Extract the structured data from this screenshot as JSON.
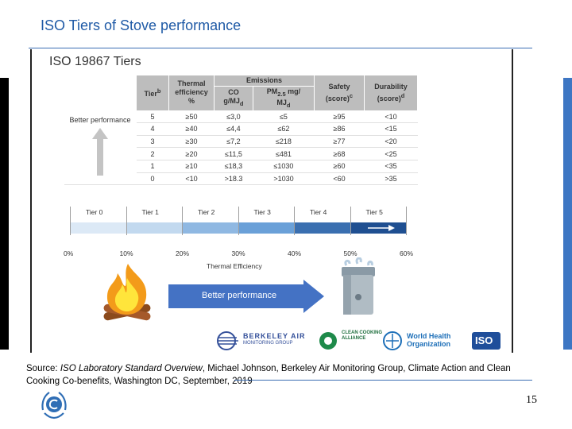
{
  "slide": {
    "title": "ISO Tiers of Stove performance",
    "page_number": "15"
  },
  "figure": {
    "title": "ISO 19867 Tiers",
    "table": {
      "headers": {
        "tier": "Tier",
        "tier_sup": "b",
        "thermal": "Thermal efficiency %",
        "emissions": "Emissions",
        "co": "CO",
        "co_unit": "g/MJ",
        "co_unit_sub": "d",
        "pm": "PM",
        "pm_sub": "2.5",
        "pm_unit": " mg/",
        "pm_unit2": "MJ",
        "pm_unit2_sub": "d",
        "safety": "Safety (score)",
        "safety_sup": "c",
        "durability": "Durability (score)",
        "durability_sup": "d"
      },
      "side_label": "Better performance",
      "rows": [
        {
          "tier": "5",
          "thermal": "≥50",
          "co": "≤3,0",
          "pm": "≤5",
          "safety": "≥95",
          "durability": "<10"
        },
        {
          "tier": "4",
          "thermal": "≥40",
          "co": "≤4,4",
          "pm": "≤62",
          "safety": "≥86",
          "durability": "<15"
        },
        {
          "tier": "3",
          "thermal": "≥30",
          "co": "≤7,2",
          "pm": "≤218",
          "safety": "≥77",
          "durability": "<20"
        },
        {
          "tier": "2",
          "thermal": "≥20",
          "co": "≤11,5",
          "pm": "≤481",
          "safety": "≥68",
          "durability": "<25"
        },
        {
          "tier": "1",
          "thermal": "≥10",
          "co": "≤18,3",
          "pm": "≤1030",
          "safety": "≥60",
          "durability": "<35"
        },
        {
          "tier": "0",
          "thermal": "<10",
          "co": ">18.3",
          "pm": ">1030",
          "safety": "<60",
          "durability": ">35"
        }
      ]
    },
    "scale": {
      "tiers": [
        "Tier 0",
        "Tier 1",
        "Tier 2",
        "Tier 3",
        "Tier 4",
        "Tier 5"
      ],
      "percents": [
        "0%",
        "10%",
        "20%",
        "30%",
        "40%",
        "50%",
        "60%"
      ],
      "axis_label": "Thermal Efficiency",
      "colors": [
        "#dce9f6",
        "#c2d9ef",
        "#8fb8e2",
        "#6aa0d8",
        "#3a6fb0",
        "#1f4f91"
      ]
    },
    "better_performance": "Better performance",
    "logos": {
      "berkeley": "BERKELEY AIR",
      "berkeley_sub": "MONITORING GROUP",
      "clean_cooking": "CLEAN COOKING ALLIANCE",
      "who": "World Health Organization",
      "iso": "ISO"
    }
  },
  "source": {
    "prefix": "Source: ",
    "italic": "ISO Laboratory Standard Overview",
    "rest": ", Michael Johnson, Berkeley Air Monitoring Group, Climate Action and Clean Cooking Co-benefits, Washington DC, September, 2019"
  },
  "colors": {
    "title": "#1f5aa6",
    "accent": "#3d76c3",
    "arrow": "#4472c4",
    "table_header": "#bdbdbd"
  }
}
